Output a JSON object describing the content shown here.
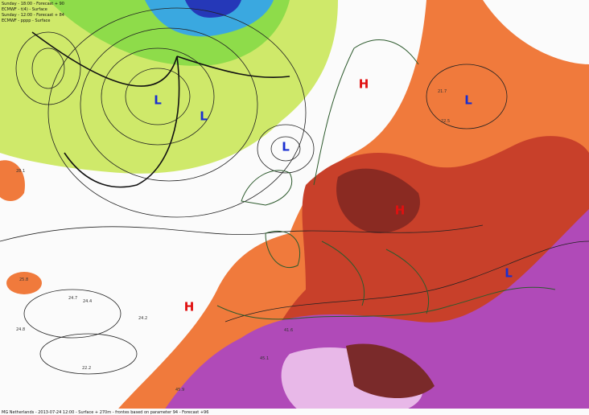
{
  "header": {
    "lines": [
      "Sunday - 18:00 - Forecast + 90",
      "ECMWF - t(4) - Surface",
      "Sunday - 12:00 - Forecast + 84",
      "ECMWF - pppp - Surface"
    ]
  },
  "lows": [
    "L",
    "L",
    "L",
    "L",
    "L"
  ],
  "highs": [
    "H",
    "H",
    "H"
  ],
  "temperature_labels": [
    "24.7",
    "24.4",
    "24.2",
    "25.8",
    "22.2",
    "24.8",
    "21.7",
    "22.5",
    "28.1",
    "45.1",
    "41.6",
    "45.9"
  ],
  "footer": "MG Netherlands - 2013-07-24 12:00 - Surface + 270m - frontes based on parameter 94 - Forecast +96"
}
